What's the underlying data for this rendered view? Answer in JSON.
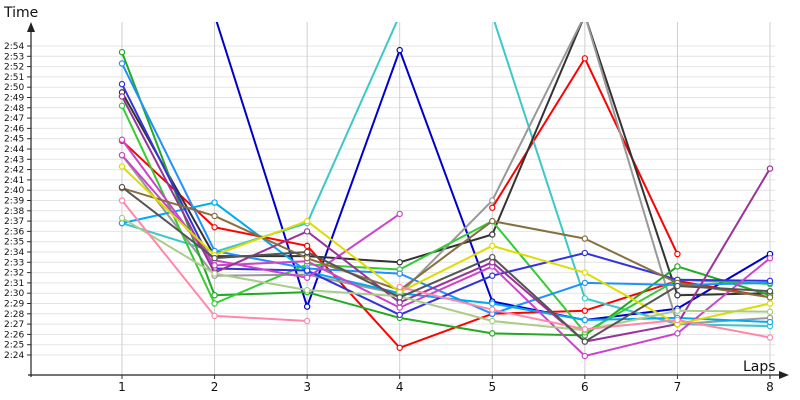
{
  "chart_data": {
    "type": "line",
    "title": "",
    "ylabel": "Time",
    "xlabel": "Laps",
    "x": [
      1,
      2,
      3,
      4,
      5,
      6,
      7,
      8
    ],
    "y_unit": "m:ss",
    "ylim": [
      "2:23",
      "2:57"
    ],
    "y_ticks": [
      "2:24",
      "2:25",
      "2:26",
      "2:27",
      "2:28",
      "2:29",
      "2:30",
      "2:31",
      "2:32",
      "2:33",
      "2:34",
      "2:35",
      "2:36",
      "2:37",
      "2:38",
      "2:39",
      "2:40",
      "2:41",
      "2:42",
      "2:43",
      "2:44",
      "2:45",
      "2:46",
      "2:47",
      "2:48",
      "2:49",
      "2:50",
      "2:51",
      "2:52",
      "2:53",
      "2:54"
    ],
    "x_ticks": [
      "1",
      "2",
      "3",
      "4",
      "5",
      "6",
      "7",
      "8"
    ],
    "grid": true,
    "legend": "none",
    "series": [
      {
        "color": "#0000cc",
        "values": [
          "2:57",
          "2:57",
          "2:28.7",
          "2:53.6",
          "2:29.2",
          "2:27.4",
          "2:28.5",
          "2:33.8"
        ]
      },
      {
        "color": "#ff0000",
        "values": [
          "2:44.8",
          "2:36.4",
          "2:34.6",
          "2:24.7",
          "2:28.0",
          "2:28.3",
          "2:31.2",
          "2:29.6"
        ]
      },
      {
        "color": "#ff0000",
        "values": [
          null,
          null,
          null,
          null,
          "2:38.3",
          "2:52.8",
          "2:33.8",
          null
        ]
      },
      {
        "color": "#3cc8c8",
        "values": [
          "2:36.8",
          "2:34.0",
          "2:36.8",
          "2:57",
          "2:57",
          "2:29.5",
          "2:27.0",
          "2:26.8"
        ]
      },
      {
        "color": "#333333",
        "values": [
          "2:49.5",
          "2:33.6",
          "2:33.6",
          "2:33.0",
          "2:35.7",
          "2:57",
          "2:29.8",
          "2:30.0"
        ]
      },
      {
        "color": "#999999",
        "values": [
          "2:43.4",
          "2:31.7",
          "2:31.8",
          "2:29.9",
          "2:39.0",
          "2:57",
          "2:27.0",
          "2:27.6"
        ]
      },
      {
        "color": "#22aa22",
        "values": [
          "2:53.4",
          "2:29.8",
          "2:30.1",
          "2:27.6",
          "2:26.1",
          "2:25.9",
          "2:32.6",
          "2:29.8"
        ]
      },
      {
        "color": "#33cc33",
        "values": [
          "2:48.2",
          "2:29.0",
          "2:32.8",
          "2:32.3",
          "2:37.0",
          "2:26.2",
          "2:31.3",
          "2:30.9"
        ]
      },
      {
        "color": "#1e90ff",
        "values": [
          "2:52.3",
          "2:34.1",
          "2:32.4",
          "2:31.9",
          "2:28.0",
          "2:31.0",
          "2:30.8",
          "2:31.0"
        ]
      },
      {
        "color": "#00aaee",
        "values": [
          "2:36.8",
          "2:38.8",
          "2:32.1",
          "2:30.0",
          "2:29.0",
          "2:27.4",
          "2:27.6",
          "2:27.2"
        ]
      },
      {
        "color": "#3333dd",
        "values": [
          "2:50.3",
          "2:32.4",
          "2:32.2",
          "2:27.9",
          "2:31.7",
          "2:33.9",
          "2:31.3",
          "2:31.2"
        ]
      },
      {
        "color": "#cc44cc",
        "values": [
          "2:43.4",
          "2:33.2",
          "2:31.5",
          "2:37.7",
          null,
          null,
          null,
          null
        ]
      },
      {
        "color": "#cc44cc",
        "values": [
          "2:44.9",
          "2:32.7",
          "2:33.1",
          "2:28.6",
          "2:32.6",
          "2:23.9",
          "2:26.1",
          "2:33.4"
        ]
      },
      {
        "color": "#993399",
        "values": [
          "2:49.1",
          "2:32.0",
          "2:36.0",
          "2:29.1",
          "2:33.0",
          "2:25.3",
          "2:27.0",
          "2:42.1"
        ]
      },
      {
        "color": "#886f40",
        "values": [
          "2:40.2",
          "2:37.5",
          "2:33.4",
          "2:30.3",
          "2:37.0",
          "2:35.3",
          "2:31.0",
          "2:29.6"
        ]
      },
      {
        "color": "#dddd00",
        "values": [
          "2:42.3",
          "2:33.7",
          "2:37.0",
          "2:30.1",
          "2:34.6",
          "2:32.0",
          "2:27.0",
          "2:29.0"
        ]
      },
      {
        "color": "#aacc88",
        "values": [
          "2:37.3",
          "2:31.9",
          "2:30.3",
          "2:29.7",
          "2:27.3",
          "2:26.4",
          "2:28.3",
          "2:28.2"
        ]
      },
      {
        "color": "#ff88aa",
        "values": [
          "2:39.0",
          "2:27.8",
          "2:27.3",
          null,
          null,
          null,
          null,
          null
        ]
      },
      {
        "color": "#ff88aa",
        "values": [
          null,
          null,
          null,
          "2:30.6",
          "2:28.4",
          "2:26.5",
          "2:27.4",
          "2:25.7"
        ]
      },
      {
        "color": "#555555",
        "values": [
          "2:40.3",
          "2:33.4",
          "2:34.0",
          "2:29.6",
          "2:33.5",
          "2:25.3",
          "2:30.7",
          "2:30.2"
        ]
      }
    ]
  }
}
